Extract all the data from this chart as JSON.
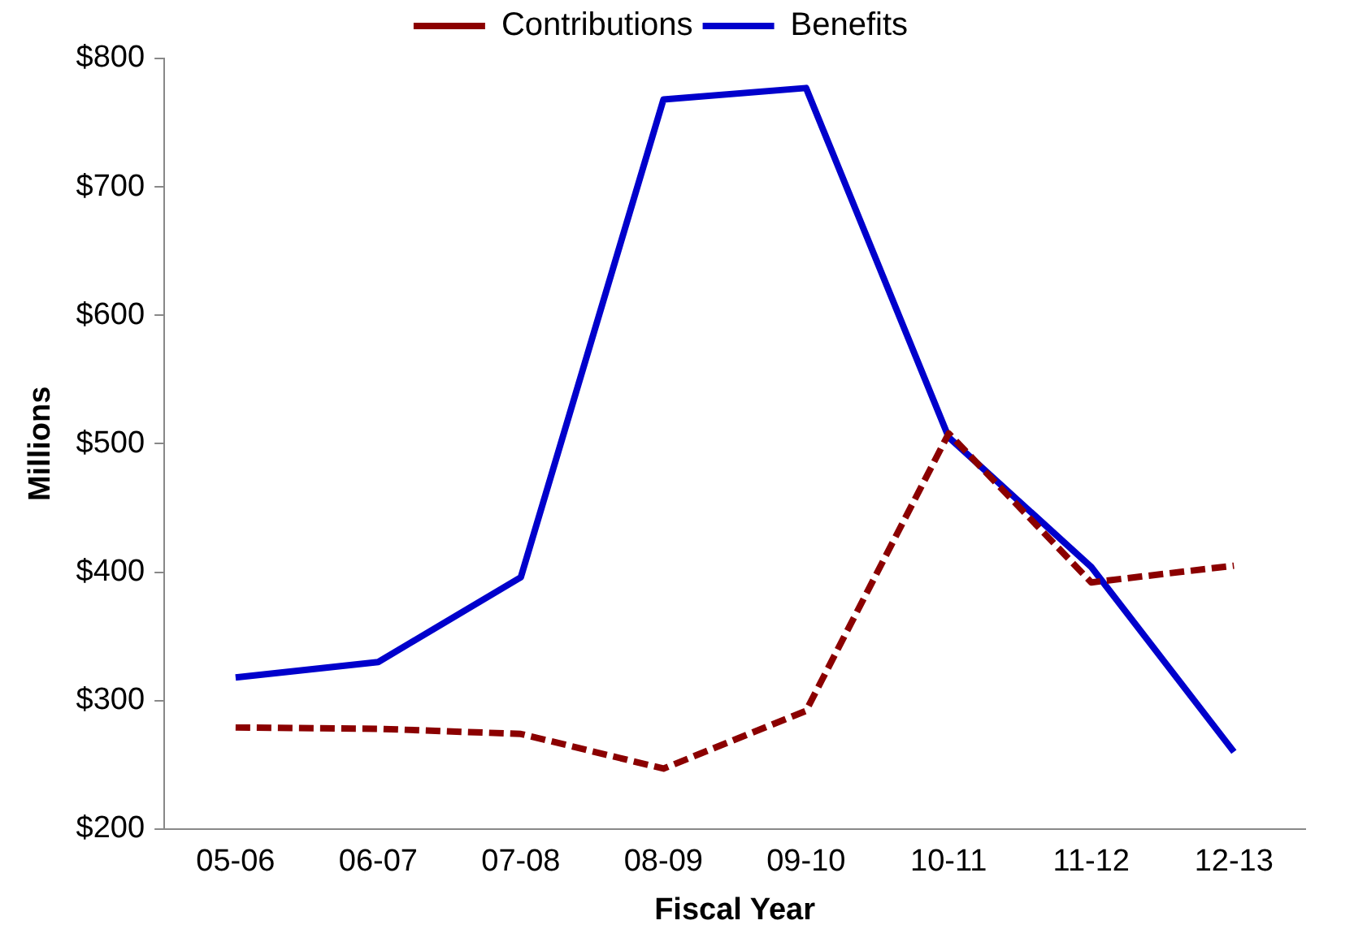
{
  "chart_data": {
    "type": "line",
    "xlabel": "Fiscal Year",
    "ylabel": "Millions",
    "categories": [
      "05-06",
      "06-07",
      "07-08",
      "08-09",
      "09-10",
      "10-11",
      "11-12",
      "12-13"
    ],
    "series": [
      {
        "name": "Contributions",
        "color": "#8b0000",
        "line_style": "dashed",
        "values": [
          279,
          278,
          274,
          247,
          292,
          508,
          392,
          405
        ]
      },
      {
        "name": "Benefits",
        "color": "#0000cc",
        "line_style": "solid",
        "values": [
          318,
          330,
          396,
          768,
          777,
          505,
          404,
          260
        ]
      }
    ],
    "ylim": [
      200,
      800
    ],
    "yticks": [
      {
        "value": 200,
        "label": "$200"
      },
      {
        "value": 300,
        "label": "$300"
      },
      {
        "value": 400,
        "label": "$400"
      },
      {
        "value": 500,
        "label": "$500"
      },
      {
        "value": 600,
        "label": "$600"
      },
      {
        "value": 700,
        "label": "$700"
      },
      {
        "value": 800,
        "label": "$800"
      }
    ],
    "grid": false,
    "legend": "top",
    "marker": "none"
  }
}
